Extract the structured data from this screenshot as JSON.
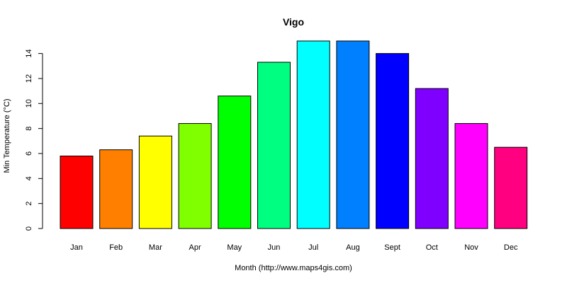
{
  "chart_data": {
    "type": "bar",
    "title": "Vigo",
    "xlabel": "Month (http://www.maps4gis.com)",
    "ylabel": "Min Temperature (°C)",
    "ylim": [
      0,
      15
    ],
    "yticks": [
      0,
      2,
      4,
      6,
      8,
      10,
      12,
      14
    ],
    "categories": [
      "Jan",
      "Feb",
      "Mar",
      "Apr",
      "May",
      "Jun",
      "Jul",
      "Aug",
      "Sept",
      "Oct",
      "Nov",
      "Dec"
    ],
    "values": [
      5.8,
      6.3,
      7.4,
      8.4,
      10.6,
      13.3,
      15.0,
      15.0,
      14.0,
      11.2,
      8.4,
      6.5
    ],
    "colors": [
      "#FF0000",
      "#FF8000",
      "#FFFF00",
      "#80FF00",
      "#00FF00",
      "#00FF80",
      "#00FFFF",
      "#0080FF",
      "#0000FF",
      "#8000FF",
      "#FF00FF",
      "#FF0080"
    ],
    "grid": false,
    "legend": "none"
  }
}
